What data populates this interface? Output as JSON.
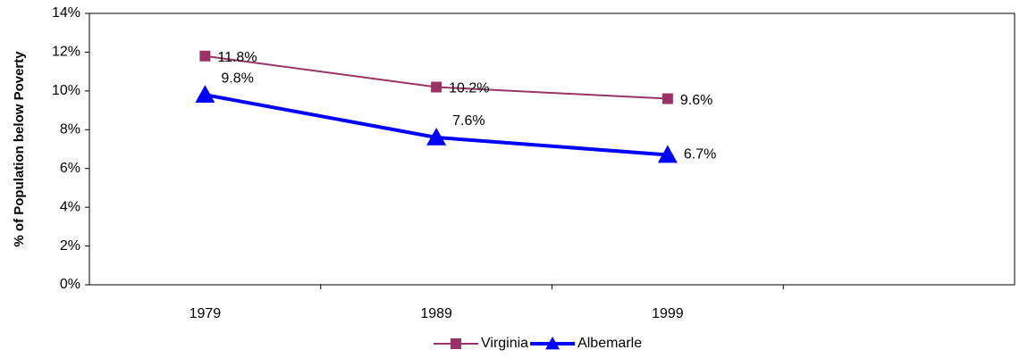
{
  "chart_data": {
    "type": "line",
    "y_label": "% of Population below Poverty",
    "categories": [
      "1979",
      "1989",
      "1999",
      null
    ],
    "series": [
      {
        "name": "Virginia",
        "color": "#993366",
        "marker": "square",
        "values": [
          11.8,
          10.2,
          9.6,
          null
        ],
        "value_labels": [
          "11.8%",
          "10.2%",
          "9.6%",
          null
        ]
      },
      {
        "name": "Albemarle",
        "color": "#0000ff",
        "marker": "triangle",
        "values": [
          9.8,
          7.6,
          6.7,
          null
        ],
        "value_labels": [
          "9.8%",
          "7.6%",
          "6.7%",
          null
        ]
      }
    ],
    "ylim": [
      0,
      14
    ],
    "yticks": [
      {
        "value": 0,
        "label": "0%"
      },
      {
        "value": 2,
        "label": "2%"
      },
      {
        "value": 4,
        "label": "4%"
      },
      {
        "value": 6,
        "label": "6%"
      },
      {
        "value": 8,
        "label": "8%"
      },
      {
        "value": 10,
        "label": "10%"
      },
      {
        "value": 12,
        "label": "12%"
      },
      {
        "value": 14,
        "label": "14%"
      }
    ],
    "grid": false,
    "legend": "bottom"
  }
}
